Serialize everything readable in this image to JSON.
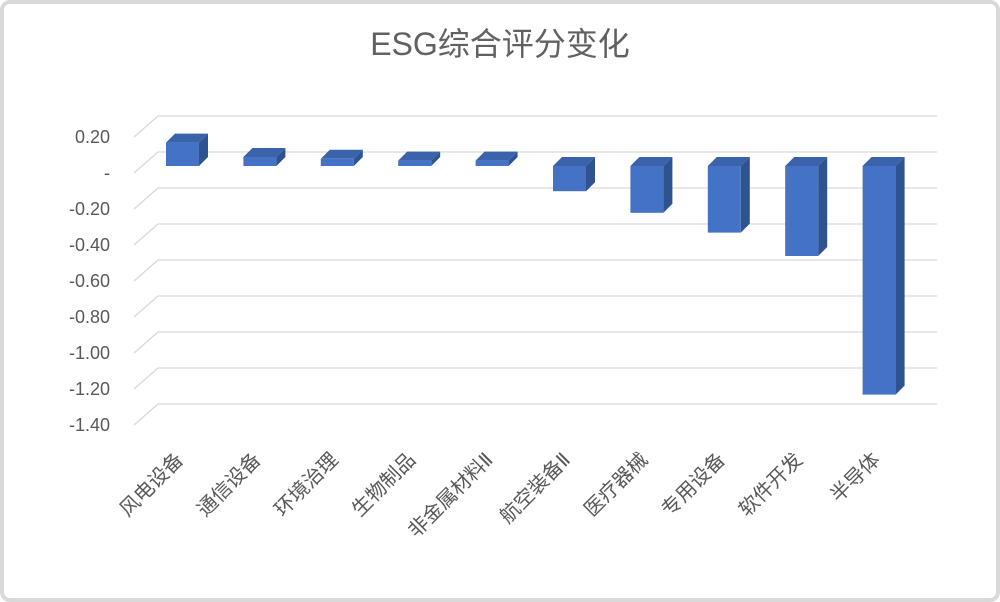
{
  "page": {
    "background": "#ffffff",
    "card_border_color": "#d9d9d9"
  },
  "chart_data": {
    "type": "bar",
    "style": "3d-column",
    "title": "ESG综合评分变化",
    "categories": [
      "风电设备",
      "通信设备",
      "环境治理",
      "生物制品",
      "非金属材料Ⅱ",
      "航空装备Ⅱ",
      "医疗器械",
      "专用设备",
      "软件开发",
      "半导体"
    ],
    "values": [
      0.13,
      0.05,
      0.04,
      0.03,
      0.03,
      -0.14,
      -0.26,
      -0.37,
      -0.5,
      -1.27
    ],
    "series_name": "ESG综合评分变化",
    "xlabel": "",
    "ylabel": "",
    "ylim": [
      -1.4,
      0.2
    ],
    "ytick_step": 0.2,
    "grid": true,
    "legend": "none",
    "yticks": [
      {
        "label": "0.20",
        "value": 0.2
      },
      {
        "label": "-",
        "value": 0
      },
      {
        "label": "-0.20",
        "value": -0.2
      },
      {
        "label": "-0.40",
        "value": -0.4
      },
      {
        "label": "-0.60",
        "value": -0.6
      },
      {
        "label": "-0.80",
        "value": -0.8
      },
      {
        "label": "-1.00",
        "value": -1.0
      },
      {
        "label": "-1.20",
        "value": -1.2
      },
      {
        "label": "-1.40",
        "value": -1.4
      }
    ],
    "colors": {
      "bar_front": "#4472C4",
      "bar_top": "#3A63AC",
      "bar_side": "#2F5391",
      "gridline": "#D9D9D9",
      "axis_text": "#595959",
      "title_text": "#616161"
    }
  }
}
